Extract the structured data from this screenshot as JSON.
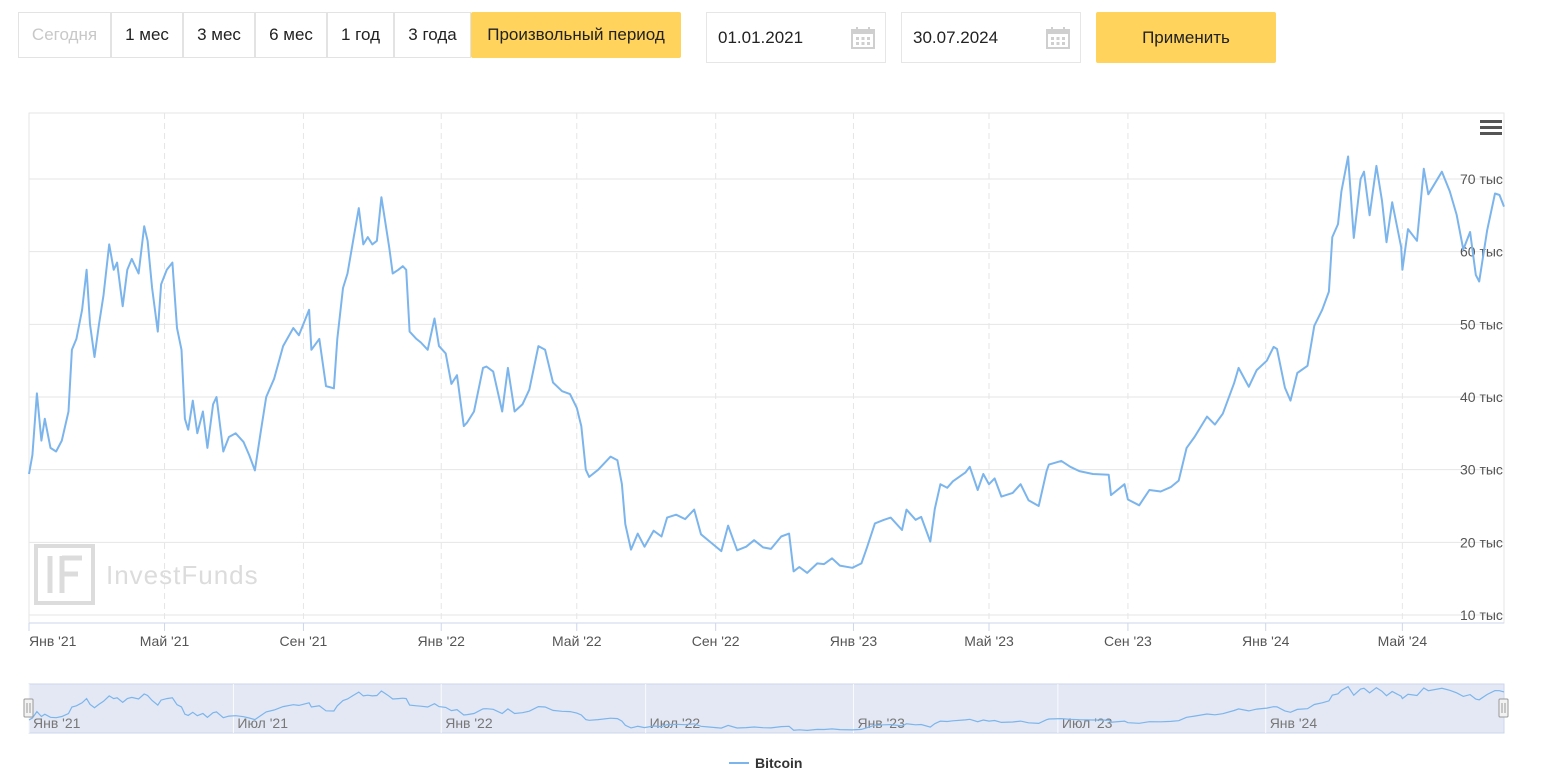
{
  "period_buttons": [
    {
      "label": "Сегодня",
      "state": "disabled"
    },
    {
      "label": "1 мес",
      "state": "normal"
    },
    {
      "label": "3 мес",
      "state": "normal"
    },
    {
      "label": "6 мес",
      "state": "normal"
    },
    {
      "label": "1 год",
      "state": "normal"
    },
    {
      "label": "3 года",
      "state": "normal"
    },
    {
      "label": "Произвольный период",
      "state": "active"
    }
  ],
  "date_from": {
    "value": "01.01.2021",
    "icon": "calendar-icon"
  },
  "date_to": {
    "value": "30.07.2024",
    "icon": "calendar-icon"
  },
  "apply_label": "Применить",
  "menu_icon": "hamburger-menu-icon",
  "watermark": "InvestFunds",
  "colors": {
    "accent": "#ffd35c",
    "line": "#7cb5ec",
    "navigator_fill": "#ccd6eb"
  },
  "chart_data": {
    "type": "line",
    "title": "",
    "xlabel": "",
    "ylabel": "",
    "x_range": [
      "2021-01-01",
      "2024-07-30"
    ],
    "ylim": [
      10000,
      80000
    ],
    "y_ticks": [
      {
        "value": 10000,
        "label": "10 тыс"
      },
      {
        "value": 20000,
        "label": "20 тыс"
      },
      {
        "value": 30000,
        "label": "30 тыс"
      },
      {
        "value": 40000,
        "label": "40 тыс"
      },
      {
        "value": 50000,
        "label": "50 тыс"
      },
      {
        "value": 60000,
        "label": "60 тыс"
      },
      {
        "value": 70000,
        "label": "70 тыс"
      }
    ],
    "x_ticks": [
      {
        "date": "2021-01-01",
        "label": "Янв '21"
      },
      {
        "date": "2021-05-01",
        "label": "Май '21"
      },
      {
        "date": "2021-09-01",
        "label": "Сен '21"
      },
      {
        "date": "2022-01-01",
        "label": "Янв '22"
      },
      {
        "date": "2022-05-01",
        "label": "Май '22"
      },
      {
        "date": "2022-09-01",
        "label": "Сен '22"
      },
      {
        "date": "2023-01-01",
        "label": "Янв '23"
      },
      {
        "date": "2023-05-01",
        "label": "Май '23"
      },
      {
        "date": "2023-09-01",
        "label": "Сен '23"
      },
      {
        "date": "2024-01-01",
        "label": "Янв '24"
      },
      {
        "date": "2024-05-01",
        "label": "Май '24"
      }
    ],
    "navigator_ticks": [
      {
        "date": "2021-01-01",
        "label": "Янв '21"
      },
      {
        "date": "2021-07-01",
        "label": "Июл '21"
      },
      {
        "date": "2022-01-01",
        "label": "Янв '22"
      },
      {
        "date": "2022-07-01",
        "label": "Июл '22"
      },
      {
        "date": "2023-01-01",
        "label": "Янв '23"
      },
      {
        "date": "2023-07-01",
        "label": "Июл '23"
      },
      {
        "date": "2024-01-01",
        "label": "Янв '24"
      }
    ],
    "grid": true,
    "legend_position": "bottom-center",
    "series": [
      {
        "name": "Bitcoin",
        "color": "#7cb5ec",
        "points": [
          [
            "2021-01-01",
            29400
          ],
          [
            "2021-01-04",
            32000
          ],
          [
            "2021-01-08",
            40500
          ],
          [
            "2021-01-12",
            34000
          ],
          [
            "2021-01-15",
            37000
          ],
          [
            "2021-01-20",
            33000
          ],
          [
            "2021-01-25",
            32500
          ],
          [
            "2021-01-30",
            34000
          ],
          [
            "2021-02-05",
            38000
          ],
          [
            "2021-02-08",
            46500
          ],
          [
            "2021-02-12",
            48000
          ],
          [
            "2021-02-17",
            52000
          ],
          [
            "2021-02-21",
            57500
          ],
          [
            "2021-02-24",
            50000
          ],
          [
            "2021-02-28",
            45500
          ],
          [
            "2021-03-04",
            50000
          ],
          [
            "2021-03-08",
            54000
          ],
          [
            "2021-03-13",
            61000
          ],
          [
            "2021-03-17",
            57500
          ],
          [
            "2021-03-20",
            58500
          ],
          [
            "2021-03-25",
            52500
          ],
          [
            "2021-03-29",
            57500
          ],
          [
            "2021-04-02",
            59000
          ],
          [
            "2021-04-08",
            57000
          ],
          [
            "2021-04-13",
            63500
          ],
          [
            "2021-04-16",
            61500
          ],
          [
            "2021-04-20",
            55000
          ],
          [
            "2021-04-25",
            49000
          ],
          [
            "2021-04-28",
            55500
          ],
          [
            "2021-05-03",
            57500
          ],
          [
            "2021-05-08",
            58500
          ],
          [
            "2021-05-12",
            49500
          ],
          [
            "2021-05-16",
            46500
          ],
          [
            "2021-05-19",
            37000
          ],
          [
            "2021-05-22",
            35500
          ],
          [
            "2021-05-26",
            39500
          ],
          [
            "2021-05-30",
            35000
          ],
          [
            "2021-06-04",
            38000
          ],
          [
            "2021-06-08",
            33000
          ],
          [
            "2021-06-13",
            39000
          ],
          [
            "2021-06-16",
            40000
          ],
          [
            "2021-06-22",
            32500
          ],
          [
            "2021-06-27",
            34500
          ],
          [
            "2021-07-03",
            35000
          ],
          [
            "2021-07-10",
            33800
          ],
          [
            "2021-07-15",
            32000
          ],
          [
            "2021-07-20",
            29900
          ],
          [
            "2021-07-25",
            35000
          ],
          [
            "2021-07-30",
            40000
          ],
          [
            "2021-08-06",
            42500
          ],
          [
            "2021-08-14",
            47000
          ],
          [
            "2021-08-23",
            49500
          ],
          [
            "2021-08-28",
            48500
          ],
          [
            "2021-09-06",
            52000
          ],
          [
            "2021-09-08",
            46500
          ],
          [
            "2021-09-15",
            48000
          ],
          [
            "2021-09-21",
            41500
          ],
          [
            "2021-09-28",
            41200
          ],
          [
            "2021-10-01",
            48000
          ],
          [
            "2021-10-06",
            55000
          ],
          [
            "2021-10-10",
            57000
          ],
          [
            "2021-10-15",
            61500
          ],
          [
            "2021-10-20",
            66000
          ],
          [
            "2021-10-24",
            61000
          ],
          [
            "2021-10-28",
            62000
          ],
          [
            "2021-11-01",
            61000
          ],
          [
            "2021-11-05",
            61500
          ],
          [
            "2021-11-09",
            67500
          ],
          [
            "2021-11-12",
            64500
          ],
          [
            "2021-11-16",
            60500
          ],
          [
            "2021-11-19",
            57000
          ],
          [
            "2021-11-24",
            57500
          ],
          [
            "2021-11-28",
            58000
          ],
          [
            "2021-12-01",
            57500
          ],
          [
            "2021-12-04",
            49000
          ],
          [
            "2021-12-10",
            48000
          ],
          [
            "2021-12-14",
            47500
          ],
          [
            "2021-12-20",
            46500
          ],
          [
            "2021-12-26",
            50800
          ],
          [
            "2021-12-30",
            47000
          ],
          [
            "2022-01-05",
            46000
          ],
          [
            "2022-01-10",
            41800
          ],
          [
            "2022-01-15",
            43000
          ],
          [
            "2022-01-21",
            36000
          ],
          [
            "2022-01-24",
            36500
          ],
          [
            "2022-01-30",
            38000
          ],
          [
            "2022-02-07",
            44000
          ],
          [
            "2022-02-10",
            44200
          ],
          [
            "2022-02-16",
            43500
          ],
          [
            "2022-02-24",
            38000
          ],
          [
            "2022-03-01",
            44000
          ],
          [
            "2022-03-07",
            38000
          ],
          [
            "2022-03-14",
            39000
          ],
          [
            "2022-03-20",
            41000
          ],
          [
            "2022-03-28",
            47000
          ],
          [
            "2022-04-03",
            46500
          ],
          [
            "2022-04-10",
            42000
          ],
          [
            "2022-04-18",
            40800
          ],
          [
            "2022-04-25",
            40400
          ],
          [
            "2022-05-01",
            38500
          ],
          [
            "2022-05-05",
            36000
          ],
          [
            "2022-05-09",
            30000
          ],
          [
            "2022-05-12",
            29000
          ],
          [
            "2022-05-20",
            30000
          ],
          [
            "2022-05-31",
            31800
          ],
          [
            "2022-06-06",
            31300
          ],
          [
            "2022-06-10",
            28000
          ],
          [
            "2022-06-13",
            22500
          ],
          [
            "2022-06-18",
            19000
          ],
          [
            "2022-06-24",
            21200
          ],
          [
            "2022-06-30",
            19400
          ],
          [
            "2022-07-08",
            21600
          ],
          [
            "2022-07-15",
            20800
          ],
          [
            "2022-07-20",
            23400
          ],
          [
            "2022-07-28",
            23800
          ],
          [
            "2022-08-05",
            23200
          ],
          [
            "2022-08-13",
            24500
          ],
          [
            "2022-08-19",
            21100
          ],
          [
            "2022-08-26",
            20200
          ],
          [
            "2022-09-06",
            18800
          ],
          [
            "2022-09-12",
            22300
          ],
          [
            "2022-09-20",
            18900
          ],
          [
            "2022-09-28",
            19400
          ],
          [
            "2022-10-05",
            20300
          ],
          [
            "2022-10-13",
            19300
          ],
          [
            "2022-10-20",
            19100
          ],
          [
            "2022-10-29",
            20800
          ],
          [
            "2022-11-05",
            21200
          ],
          [
            "2022-11-09",
            16000
          ],
          [
            "2022-11-14",
            16600
          ],
          [
            "2022-11-21",
            15800
          ],
          [
            "2022-11-30",
            17100
          ],
          [
            "2022-12-06",
            17000
          ],
          [
            "2022-12-13",
            17800
          ],
          [
            "2022-12-20",
            16800
          ],
          [
            "2022-12-31",
            16500
          ],
          [
            "2023-01-08",
            17100
          ],
          [
            "2023-01-13",
            19300
          ],
          [
            "2023-01-20",
            22600
          ],
          [
            "2023-01-28",
            23100
          ],
          [
            "2023-02-03",
            23400
          ],
          [
            "2023-02-13",
            21700
          ],
          [
            "2023-02-17",
            24500
          ],
          [
            "2023-02-25",
            23100
          ],
          [
            "2023-03-02",
            23500
          ],
          [
            "2023-03-10",
            20100
          ],
          [
            "2023-03-14",
            24600
          ],
          [
            "2023-03-19",
            28000
          ],
          [
            "2023-03-25",
            27500
          ],
          [
            "2023-03-30",
            28400
          ],
          [
            "2023-04-10",
            29600
          ],
          [
            "2023-04-14",
            30400
          ],
          [
            "2023-04-21",
            27200
          ],
          [
            "2023-04-26",
            29400
          ],
          [
            "2023-05-01",
            28000
          ],
          [
            "2023-05-06",
            28800
          ],
          [
            "2023-05-12",
            26300
          ],
          [
            "2023-05-22",
            26800
          ],
          [
            "2023-05-29",
            28000
          ],
          [
            "2023-06-05",
            25800
          ],
          [
            "2023-06-14",
            25000
          ],
          [
            "2023-06-21",
            29800
          ],
          [
            "2023-06-23",
            30700
          ],
          [
            "2023-07-04",
            31200
          ],
          [
            "2023-07-12",
            30400
          ],
          [
            "2023-07-20",
            29800
          ],
          [
            "2023-08-01",
            29400
          ],
          [
            "2023-08-15",
            29300
          ],
          [
            "2023-08-17",
            26500
          ],
          [
            "2023-08-29",
            28000
          ],
          [
            "2023-09-01",
            25900
          ],
          [
            "2023-09-11",
            25100
          ],
          [
            "2023-09-20",
            27200
          ],
          [
            "2023-09-30",
            27000
          ],
          [
            "2023-10-09",
            27600
          ],
          [
            "2023-10-16",
            28500
          ],
          [
            "2023-10-23",
            33000
          ],
          [
            "2023-10-30",
            34500
          ],
          [
            "2023-11-10",
            37300
          ],
          [
            "2023-11-17",
            36200
          ],
          [
            "2023-11-24",
            37700
          ],
          [
            "2023-12-04",
            41900
          ],
          [
            "2023-12-08",
            44000
          ],
          [
            "2023-12-17",
            41400
          ],
          [
            "2023-12-24",
            43700
          ],
          [
            "2024-01-02",
            45000
          ],
          [
            "2024-01-08",
            46900
          ],
          [
            "2024-01-11",
            46600
          ],
          [
            "2024-01-18",
            41300
          ],
          [
            "2024-01-23",
            39500
          ],
          [
            "2024-01-29",
            43300
          ],
          [
            "2024-02-07",
            44300
          ],
          [
            "2024-02-13",
            49800
          ],
          [
            "2024-02-20",
            52000
          ],
          [
            "2024-02-26",
            54500
          ],
          [
            "2024-02-29",
            62000
          ],
          [
            "2024-03-05",
            63800
          ],
          [
            "2024-03-08",
            68300
          ],
          [
            "2024-03-14",
            73100
          ],
          [
            "2024-03-19",
            61900
          ],
          [
            "2024-03-25",
            70000
          ],
          [
            "2024-03-28",
            71000
          ],
          [
            "2024-04-02",
            65000
          ],
          [
            "2024-04-08",
            71800
          ],
          [
            "2024-04-13",
            67000
          ],
          [
            "2024-04-17",
            61300
          ],
          [
            "2024-04-22",
            66800
          ],
          [
            "2024-04-30",
            60600
          ],
          [
            "2024-05-01",
            57500
          ],
          [
            "2024-05-06",
            63100
          ],
          [
            "2024-05-14",
            61500
          ],
          [
            "2024-05-20",
            71400
          ],
          [
            "2024-05-24",
            67900
          ],
          [
            "2024-06-05",
            71000
          ],
          [
            "2024-06-12",
            68300
          ],
          [
            "2024-06-18",
            65100
          ],
          [
            "2024-06-24",
            60300
          ],
          [
            "2024-06-30",
            62700
          ],
          [
            "2024-07-05",
            56800
          ],
          [
            "2024-07-08",
            55900
          ],
          [
            "2024-07-15",
            62900
          ],
          [
            "2024-07-22",
            68000
          ],
          [
            "2024-07-26",
            67800
          ],
          [
            "2024-07-30",
            66200
          ]
        ]
      }
    ]
  }
}
